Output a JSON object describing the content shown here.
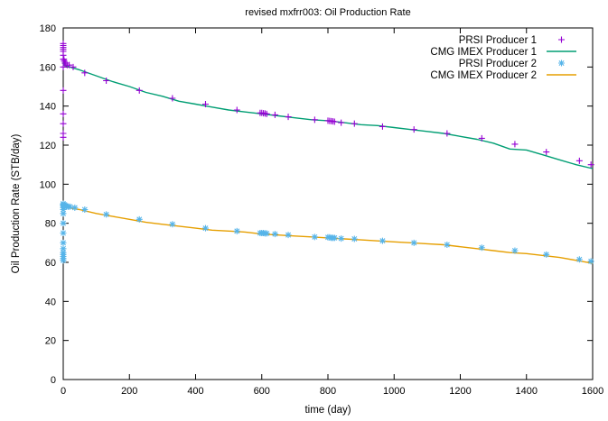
{
  "chart_data": {
    "type": "line",
    "title": "revised mxfrr003: Oil Production Rate",
    "xlabel": "time (day)",
    "ylabel": "Oil Production Rate (STB/day)",
    "xlim": [
      0,
      1600
    ],
    "ylim": [
      0,
      180
    ],
    "xticks": [
      0,
      200,
      400,
      600,
      800,
      1000,
      1200,
      1400,
      1600
    ],
    "yticks": [
      0,
      20,
      40,
      60,
      80,
      100,
      120,
      140,
      160,
      180
    ],
    "grid": false,
    "legend_position": "top-right",
    "series": [
      {
        "name": "PRSI Producer 1",
        "style": "points",
        "marker": "plus",
        "color": "#9400d3",
        "points": [
          [
            0,
            124
          ],
          [
            0,
            126
          ],
          [
            0,
            131
          ],
          [
            0,
            136
          ],
          [
            0,
            148
          ],
          [
            0,
            160
          ],
          [
            0,
            164
          ],
          [
            0,
            166
          ],
          [
            0,
            168
          ],
          [
            0,
            169
          ],
          [
            0,
            170
          ],
          [
            0,
            171
          ],
          [
            0,
            172
          ],
          [
            2,
            164
          ],
          [
            3,
            163
          ],
          [
            5,
            162
          ],
          [
            8,
            162
          ],
          [
            12,
            161
          ],
          [
            18,
            161
          ],
          [
            30,
            160
          ],
          [
            65,
            157
          ],
          [
            130,
            153
          ],
          [
            230,
            148
          ],
          [
            330,
            144
          ],
          [
            430,
            141
          ],
          [
            525,
            138
          ],
          [
            595,
            136.5
          ],
          [
            600,
            136.5
          ],
          [
            605,
            136.3
          ],
          [
            610,
            136.2
          ],
          [
            615,
            136
          ],
          [
            640,
            135.5
          ],
          [
            680,
            134.5
          ],
          [
            760,
            133
          ],
          [
            800,
            132.5
          ],
          [
            805,
            132.4
          ],
          [
            810,
            132.3
          ],
          [
            815,
            132.2
          ],
          [
            820,
            132
          ],
          [
            840,
            131.5
          ],
          [
            880,
            131
          ],
          [
            965,
            129.5
          ],
          [
            1060,
            128
          ],
          [
            1160,
            126
          ],
          [
            1265,
            123.5
          ],
          [
            1365,
            120.5
          ],
          [
            1460,
            116.5
          ],
          [
            1560,
            112
          ],
          [
            1595,
            110
          ]
        ]
      },
      {
        "name": "CMG IMEX Producer 1",
        "style": "line",
        "color": "#009e73",
        "points": [
          [
            0,
            164
          ],
          [
            2,
            161
          ],
          [
            10,
            160.5
          ],
          [
            30,
            159.5
          ],
          [
            50,
            158.5
          ],
          [
            100,
            155.5
          ],
          [
            150,
            152.5
          ],
          [
            200,
            150
          ],
          [
            250,
            147
          ],
          [
            300,
            145
          ],
          [
            350,
            142.5
          ],
          [
            400,
            141
          ],
          [
            450,
            139.5
          ],
          [
            500,
            138
          ],
          [
            550,
            137
          ],
          [
            600,
            136
          ],
          [
            650,
            135
          ],
          [
            700,
            134
          ],
          [
            750,
            133
          ],
          [
            800,
            132.5
          ],
          [
            850,
            131.5
          ],
          [
            900,
            130.5
          ],
          [
            950,
            130
          ],
          [
            1000,
            129
          ],
          [
            1050,
            128
          ],
          [
            1100,
            127
          ],
          [
            1150,
            126
          ],
          [
            1200,
            124.5
          ],
          [
            1250,
            123
          ],
          [
            1300,
            121
          ],
          [
            1350,
            118
          ],
          [
            1400,
            117.5
          ],
          [
            1450,
            115
          ],
          [
            1500,
            112.5
          ],
          [
            1550,
            110
          ],
          [
            1600,
            108
          ]
        ]
      },
      {
        "name": "PRSI Producer 2",
        "style": "points",
        "marker": "star",
        "color": "#56b4e9",
        "points": [
          [
            0,
            61
          ],
          [
            0,
            62
          ],
          [
            0,
            63
          ],
          [
            0,
            64
          ],
          [
            0,
            65
          ],
          [
            0,
            67
          ],
          [
            0,
            70
          ],
          [
            0,
            75
          ],
          [
            0,
            80
          ],
          [
            0,
            85
          ],
          [
            0,
            87
          ],
          [
            0,
            88
          ],
          [
            0,
            89
          ],
          [
            0,
            89.5
          ],
          [
            0,
            90
          ],
          [
            2,
            89
          ],
          [
            4,
            89.5
          ],
          [
            7,
            89
          ],
          [
            10,
            88.5
          ],
          [
            15,
            88.5
          ],
          [
            20,
            88.5
          ],
          [
            35,
            88
          ],
          [
            65,
            87
          ],
          [
            130,
            84.5
          ],
          [
            230,
            82
          ],
          [
            330,
            79.5
          ],
          [
            430,
            77.5
          ],
          [
            525,
            76
          ],
          [
            595,
            75
          ],
          [
            600,
            75
          ],
          [
            605,
            75
          ],
          [
            610,
            74.8
          ],
          [
            615,
            74.8
          ],
          [
            640,
            74.5
          ],
          [
            680,
            74
          ],
          [
            760,
            73
          ],
          [
            800,
            72.8
          ],
          [
            805,
            72.8
          ],
          [
            810,
            72.5
          ],
          [
            815,
            72.5
          ],
          [
            820,
            72.5
          ],
          [
            840,
            72.2
          ],
          [
            880,
            72
          ],
          [
            965,
            71
          ],
          [
            1060,
            70
          ],
          [
            1160,
            69
          ],
          [
            1265,
            67.5
          ],
          [
            1365,
            66
          ],
          [
            1460,
            64
          ],
          [
            1560,
            61.5
          ],
          [
            1595,
            60.5
          ]
        ]
      },
      {
        "name": "CMG IMEX Producer 2",
        "style": "line",
        "color": "#e69f00",
        "points": [
          [
            0,
            89
          ],
          [
            5,
            88.5
          ],
          [
            30,
            87.5
          ],
          [
            50,
            87
          ],
          [
            100,
            85
          ],
          [
            150,
            83.5
          ],
          [
            200,
            82
          ],
          [
            250,
            80.5
          ],
          [
            300,
            79.5
          ],
          [
            350,
            78.5
          ],
          [
            400,
            77.5
          ],
          [
            450,
            76.5
          ],
          [
            500,
            76
          ],
          [
            550,
            75.5
          ],
          [
            600,
            74.5
          ],
          [
            650,
            74
          ],
          [
            700,
            73.5
          ],
          [
            750,
            73
          ],
          [
            800,
            72.5
          ],
          [
            850,
            72
          ],
          [
            900,
            71.5
          ],
          [
            950,
            71
          ],
          [
            1000,
            70.5
          ],
          [
            1050,
            70
          ],
          [
            1100,
            69.5
          ],
          [
            1150,
            69
          ],
          [
            1200,
            68
          ],
          [
            1250,
            67
          ],
          [
            1300,
            66
          ],
          [
            1350,
            65
          ],
          [
            1400,
            64.5
          ],
          [
            1450,
            63.5
          ],
          [
            1500,
            62.5
          ],
          [
            1550,
            61
          ],
          [
            1600,
            59.5
          ]
        ]
      }
    ]
  }
}
